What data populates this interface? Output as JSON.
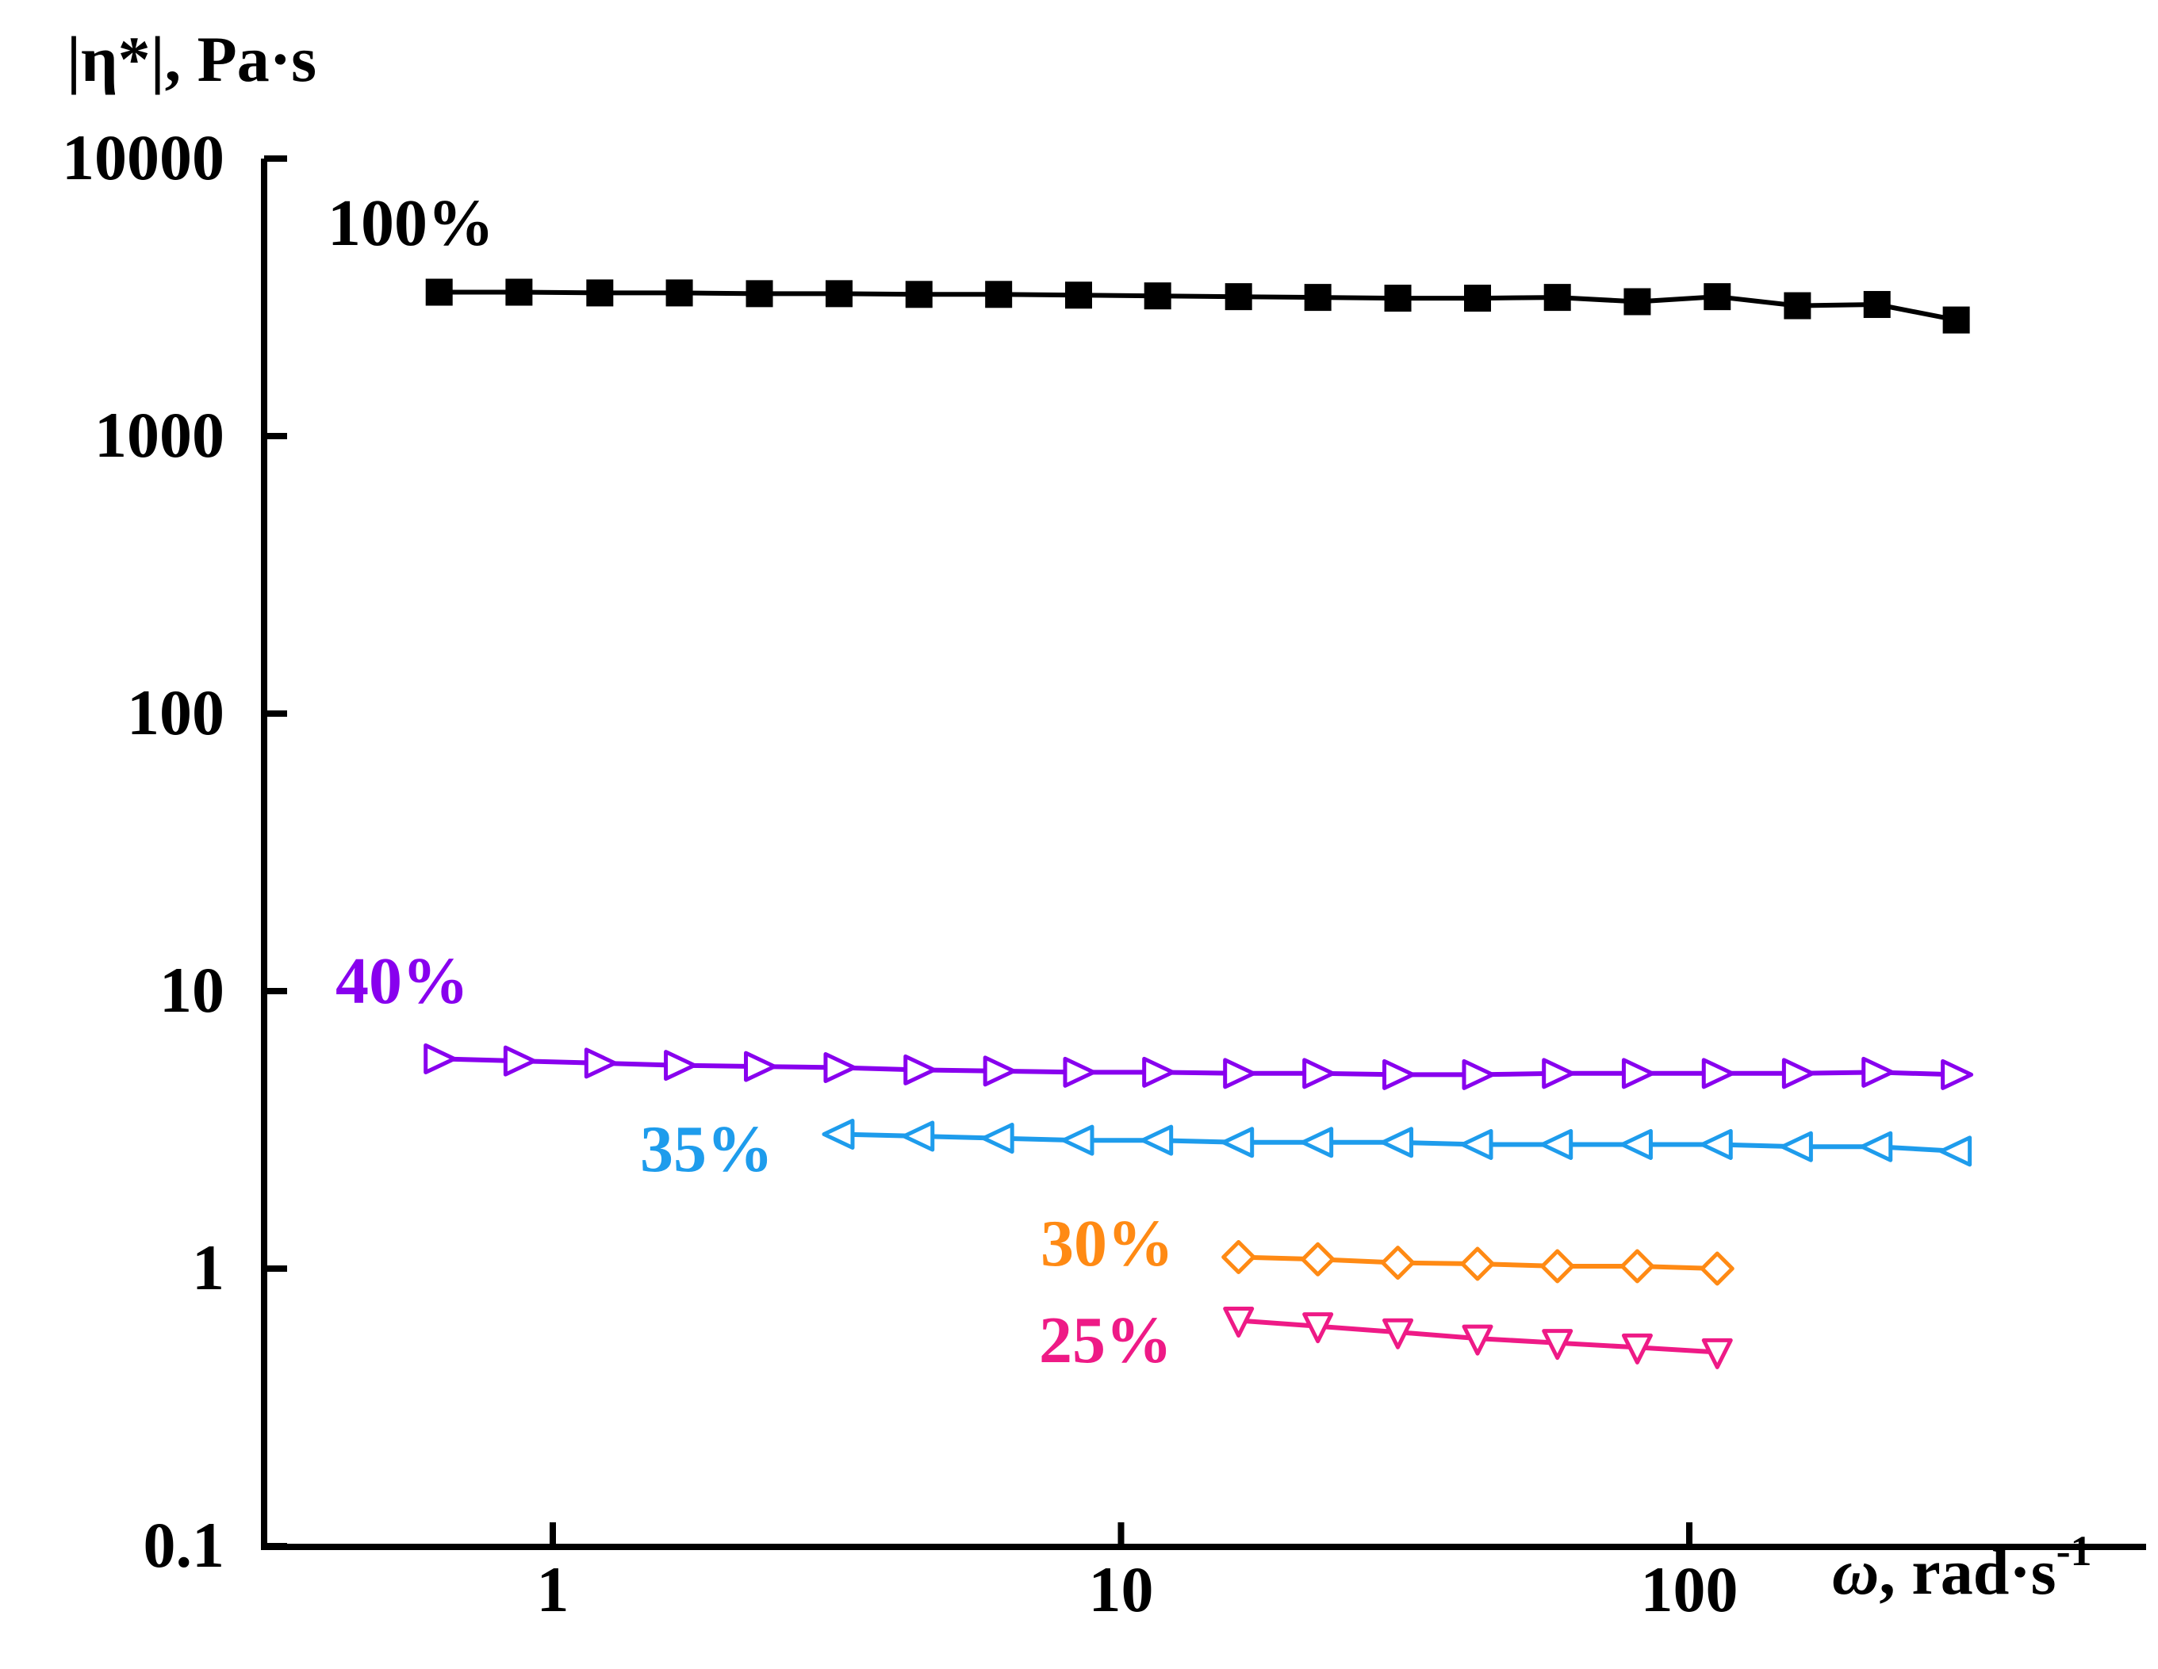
{
  "chart_data": {
    "type": "line",
    "title": "",
    "ylabel": "|η*|, Pa·s",
    "xlabel_symbol": "ω",
    "xlabel_text": ", rad·s",
    "xlabel_sup": "-1",
    "xscale": "log",
    "yscale": "log",
    "xlim": [
      0.3,
      800
    ],
    "ylim": [
      0.1,
      10000
    ],
    "x_ticks": [
      1,
      10,
      100
    ],
    "x_tick_labels": [
      "1",
      "10",
      "100"
    ],
    "y_ticks": [
      0.1,
      1,
      10,
      100,
      1000,
      10000
    ],
    "y_tick_labels": [
      "0.1",
      "1",
      "10",
      "100",
      "1000",
      "10000"
    ],
    "series": [
      {
        "name": "100%",
        "color": "#000000",
        "marker": "square-filled",
        "x": [
          0.631,
          0.872,
          1.21,
          1.67,
          2.31,
          3.19,
          4.41,
          6.09,
          8.42,
          11.6,
          16.1,
          22.2,
          30.7,
          42.4,
          58.6,
          81.0,
          112,
          155,
          214,
          295
        ],
        "y": [
          3300,
          3300,
          3280,
          3280,
          3260,
          3260,
          3240,
          3240,
          3220,
          3200,
          3180,
          3160,
          3140,
          3140,
          3160,
          3050,
          3180,
          2950,
          2980,
          2620
        ]
      },
      {
        "name": "40%",
        "color": "#8800ee",
        "marker": "triangle-right-open",
        "x": [
          0.631,
          0.872,
          1.21,
          1.67,
          2.31,
          3.19,
          4.41,
          6.09,
          8.42,
          11.6,
          16.1,
          22.2,
          30.7,
          42.4,
          58.6,
          81.0,
          112,
          155,
          214,
          295
        ],
        "y": [
          5.7,
          5.6,
          5.5,
          5.4,
          5.35,
          5.3,
          5.2,
          5.15,
          5.1,
          5.1,
          5.05,
          5.05,
          5.0,
          5.0,
          5.05,
          5.05,
          5.05,
          5.05,
          5.1,
          5.0
        ]
      },
      {
        "name": "35%",
        "color": "#1e9cec",
        "marker": "triangle-left-open",
        "x": [
          3.19,
          4.41,
          6.09,
          8.42,
          11.6,
          16.1,
          22.2,
          30.7,
          42.4,
          58.6,
          81.0,
          112,
          155,
          214,
          295
        ],
        "y": [
          3.05,
          3.0,
          2.95,
          2.9,
          2.9,
          2.85,
          2.85,
          2.85,
          2.8,
          2.8,
          2.8,
          2.8,
          2.75,
          2.75,
          2.65
        ]
      },
      {
        "name": "30%",
        "color": "#ff8a14",
        "marker": "diamond-open",
        "x": [
          16.1,
          22.2,
          30.7,
          42.4,
          58.6,
          81.0,
          112
        ],
        "y": [
          1.1,
          1.08,
          1.05,
          1.04,
          1.02,
          1.02,
          1.0
        ]
      },
      {
        "name": "25%",
        "color": "#ee1a86",
        "marker": "triangle-down-open",
        "x": [
          16.1,
          22.2,
          30.7,
          42.4,
          58.6,
          81.0,
          112
        ],
        "y": [
          0.65,
          0.62,
          0.59,
          0.56,
          0.54,
          0.52,
          0.5
        ]
      }
    ]
  }
}
